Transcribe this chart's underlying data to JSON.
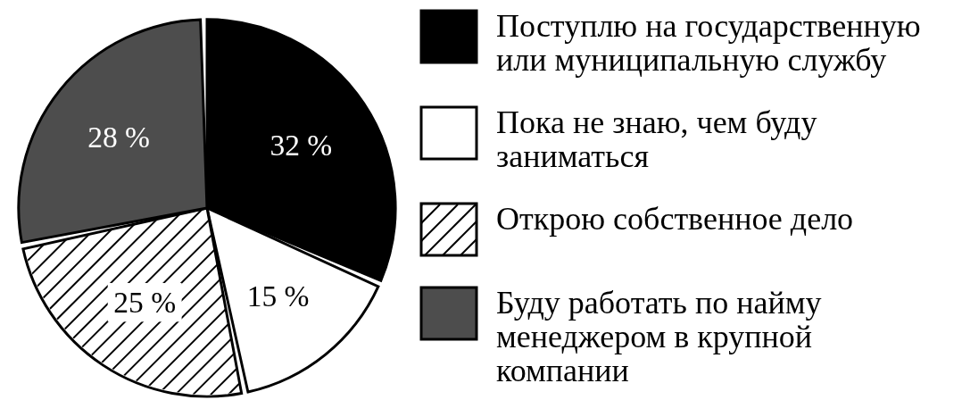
{
  "chart_data": {
    "type": "pie",
    "categories": [
      "Поступлю на государственную или муниципальную службу",
      "Пока не знаю, чем буду заниматься",
      "Открою собственное дело",
      "Буду работать по найму менеджером в крупной компании"
    ],
    "values": [
      32,
      15,
      25,
      28
    ],
    "colors": [
      "#000000",
      "#ffffff",
      "#ffffff",
      "#4d4d4d"
    ],
    "value_labels": [
      "32 %",
      "15 %",
      "25 %",
      "28 %"
    ],
    "legend": "right"
  }
}
